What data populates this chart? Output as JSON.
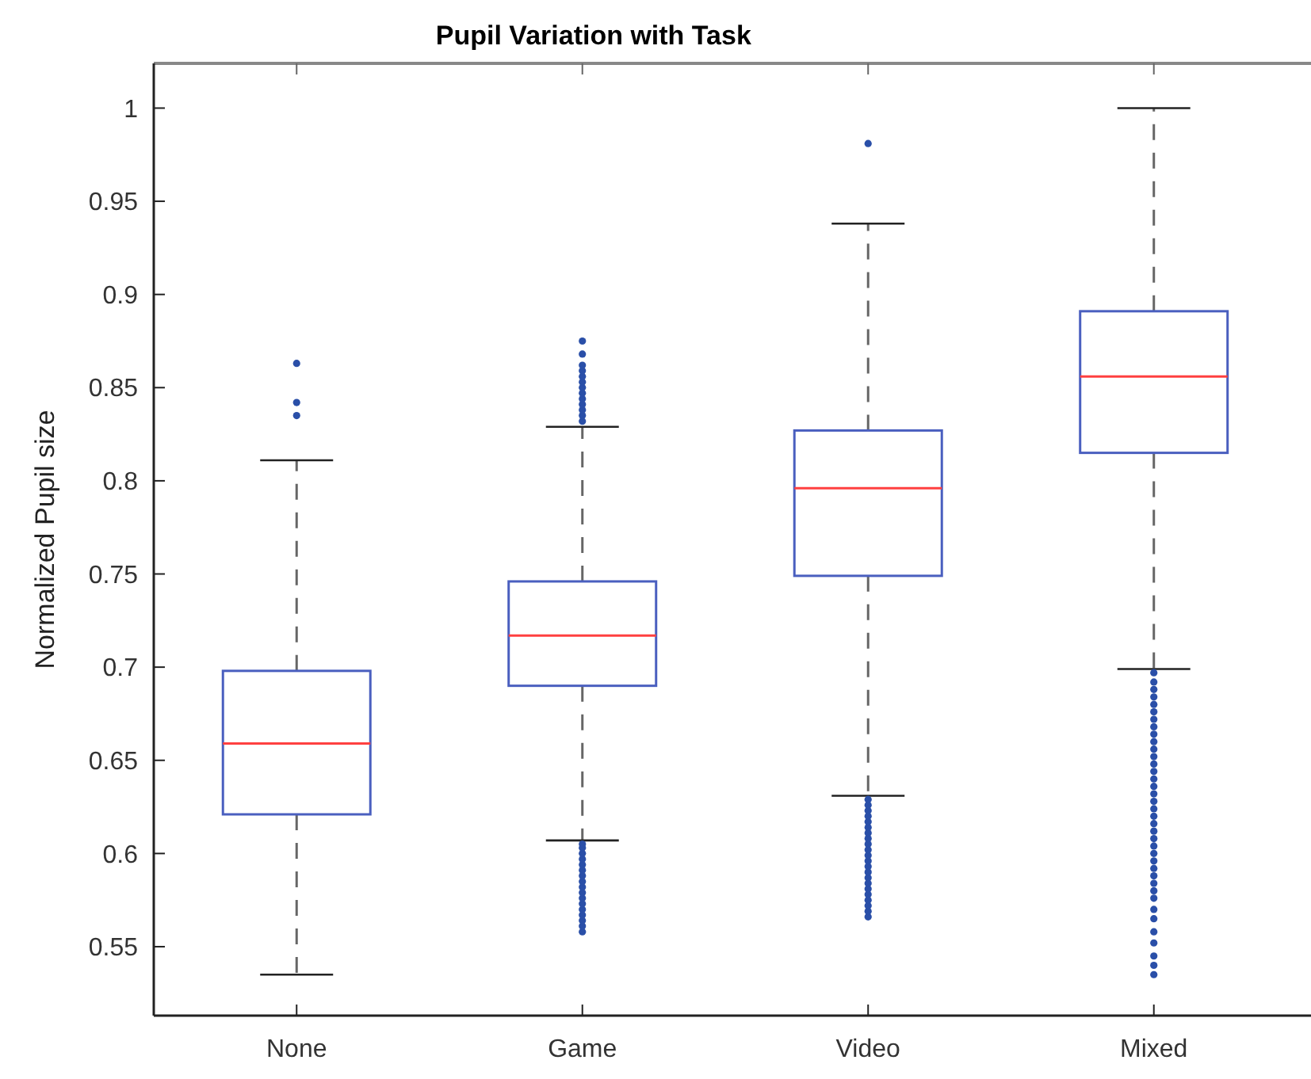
{
  "chart_data": {
    "type": "box",
    "title": "Pupil Variation with Task",
    "ylabel": "Normalized Pupil size",
    "categories": [
      "None",
      "Game",
      "Video",
      "Mixed"
    ],
    "boxes": [
      {
        "low": 0.535,
        "q1": 0.621,
        "median": 0.659,
        "q3": 0.698,
        "high": 0.811,
        "outliers": [
          0.835,
          0.842,
          0.863
        ]
      },
      {
        "low": 0.607,
        "q1": 0.69,
        "median": 0.717,
        "q3": 0.746,
        "high": 0.829,
        "outliers": [
          0.832,
          0.835,
          0.838,
          0.841,
          0.844,
          0.847,
          0.85,
          0.853,
          0.856,
          0.859,
          0.862,
          0.868,
          0.875,
          0.558,
          0.561,
          0.564,
          0.567,
          0.57,
          0.573,
          0.576,
          0.579,
          0.582,
          0.585,
          0.588,
          0.591,
          0.594,
          0.597,
          0.6,
          0.603,
          0.605
        ]
      },
      {
        "low": 0.631,
        "q1": 0.749,
        "median": 0.796,
        "q3": 0.827,
        "high": 0.938,
        "outliers": [
          0.981,
          0.566,
          0.569,
          0.572,
          0.575,
          0.578,
          0.581,
          0.584,
          0.587,
          0.59,
          0.593,
          0.596,
          0.599,
          0.602,
          0.605,
          0.608,
          0.611,
          0.614,
          0.617,
          0.62,
          0.623,
          0.626,
          0.629
        ]
      },
      {
        "low": 0.699,
        "q1": 0.815,
        "median": 0.856,
        "q3": 0.891,
        "high": 1.0,
        "outliers": [
          0.535,
          0.54,
          0.545,
          0.552,
          0.558,
          0.565,
          0.57,
          0.576,
          0.58,
          0.584,
          0.588,
          0.592,
          0.596,
          0.6,
          0.604,
          0.608,
          0.612,
          0.616,
          0.62,
          0.624,
          0.628,
          0.632,
          0.636,
          0.64,
          0.644,
          0.648,
          0.652,
          0.656,
          0.66,
          0.664,
          0.668,
          0.672,
          0.676,
          0.68,
          0.684,
          0.688,
          0.692,
          0.697
        ]
      }
    ],
    "color": "#4a5fbf",
    "ylim": [
      0.513,
      1.024
    ],
    "yticks": [
      0.55,
      0.6,
      0.65,
      0.7,
      0.75,
      0.8,
      0.85,
      0.9,
      0.95,
      1
    ],
    "grid": false
  }
}
